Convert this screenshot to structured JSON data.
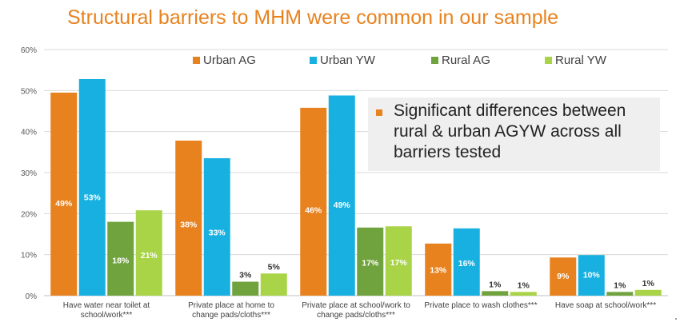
{
  "title": "Structural barriers to MHM were common in our sample",
  "callout": {
    "text": "Significant differences between rural & urban AGYW across all barriers tested"
  },
  "colors": {
    "title": "#e8821e",
    "urban_ag": "#e8821e",
    "urban_yw": "#18b0e0",
    "rural_ag": "#70a33e",
    "rural_yw": "#a9d447",
    "grid": "#d9d9d9"
  },
  "chart_data": {
    "type": "bar",
    "title": "Structural barriers to MHM were common in our sample",
    "ylim": [
      0,
      60
    ],
    "yticks": [
      "0%",
      "10%",
      "20%",
      "30%",
      "40%",
      "50%",
      "60%"
    ],
    "grid": true,
    "legend_position": "top",
    "categories": [
      [
        "Have water near toilet at",
        "school/work***"
      ],
      [
        "Private place at home to",
        "change pads/cloths***"
      ],
      [
        "Private place at school/work to",
        "change pads/cloths***"
      ],
      [
        "Private place to wash clothes***"
      ],
      [
        "Have soap at school/work***"
      ]
    ],
    "series": [
      {
        "name": "Urban AG",
        "color": "#e8821e",
        "values": [
          49.5,
          37.8,
          45.8,
          12.7,
          9.3
        ],
        "labels": [
          "49%",
          "38%",
          "46%",
          "13%",
          "9%"
        ]
      },
      {
        "name": "Urban YW",
        "color": "#18b0e0",
        "values": [
          52.8,
          33.5,
          48.8,
          16.4,
          9.9
        ],
        "labels": [
          "53%",
          "33%",
          "49%",
          "16%",
          "10%"
        ]
      },
      {
        "name": "Rural AG",
        "color": "#70a33e",
        "values": [
          18.0,
          3.4,
          16.6,
          1.1,
          0.9
        ],
        "labels": [
          "18%",
          "3%",
          "17%",
          "1%",
          "1%"
        ]
      },
      {
        "name": "Rural YW",
        "color": "#a9d447",
        "values": [
          20.8,
          5.4,
          16.9,
          0.9,
          1.4
        ],
        "labels": [
          "21%",
          "5%",
          "17%",
          "1%",
          "1%"
        ]
      }
    ]
  }
}
